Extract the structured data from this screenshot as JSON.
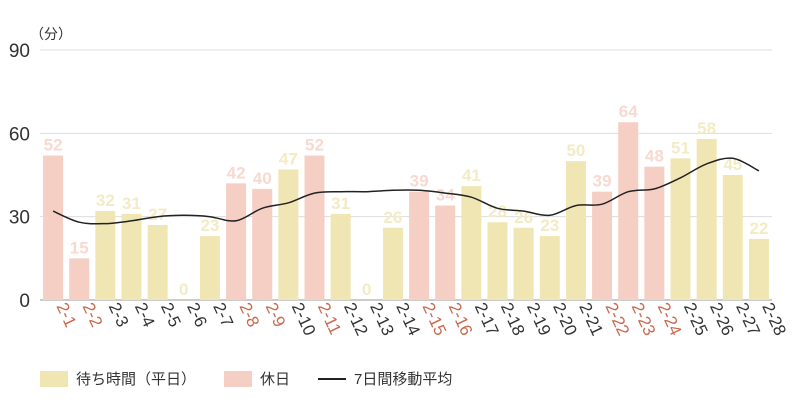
{
  "chart_data": {
    "type": "bar",
    "unit": "（分）",
    "ylim": [
      0,
      90
    ],
    "yticks": [
      0,
      30,
      60,
      90
    ],
    "grid": true,
    "categories": [
      "2-1",
      "2-2",
      "2-3",
      "2-4",
      "2-5",
      "2-6",
      "2-7",
      "2-8",
      "2-9",
      "2-10",
      "2-11",
      "2-12",
      "2-13",
      "2-14",
      "2-15",
      "2-16",
      "2-17",
      "2-18",
      "2-19",
      "2-20",
      "2-21",
      "2-22",
      "2-23",
      "2-24",
      "2-25",
      "2-26",
      "2-27",
      "2-28"
    ],
    "values": [
      52,
      15,
      32,
      31,
      27,
      0,
      23,
      42,
      40,
      47,
      52,
      31,
      0,
      26,
      39,
      34,
      41,
      28,
      26,
      23,
      50,
      39,
      64,
      48,
      51,
      58,
      45,
      22
    ],
    "holiday": [
      true,
      true,
      false,
      false,
      false,
      false,
      false,
      true,
      true,
      false,
      true,
      false,
      false,
      false,
      true,
      true,
      false,
      false,
      false,
      false,
      false,
      true,
      true,
      true,
      false,
      false,
      false,
      false
    ],
    "moving_average": {
      "name": "7日間移動平均",
      "values": [
        32,
        28,
        27.5,
        28.5,
        30,
        30.5,
        30,
        28.5,
        33,
        35,
        38.5,
        39,
        39,
        39.5,
        39.5,
        38.5,
        37,
        33,
        32,
        30.5,
        34,
        34.5,
        39,
        40,
        44,
        49,
        51,
        46.5
      ]
    },
    "colors": {
      "weekday": "#F0E6B4",
      "holiday": "#F6CFC4",
      "weekday_label": "#F3EBC4",
      "holiday_label": "#F7D9D0",
      "holiday_tick": "#C8694E",
      "tick": "#333333",
      "line": "#222222",
      "grid": "#dddddd"
    }
  },
  "legend": {
    "weekday": "待ち時間（平日）",
    "holiday": "休日",
    "line": "7日間移動平均"
  }
}
